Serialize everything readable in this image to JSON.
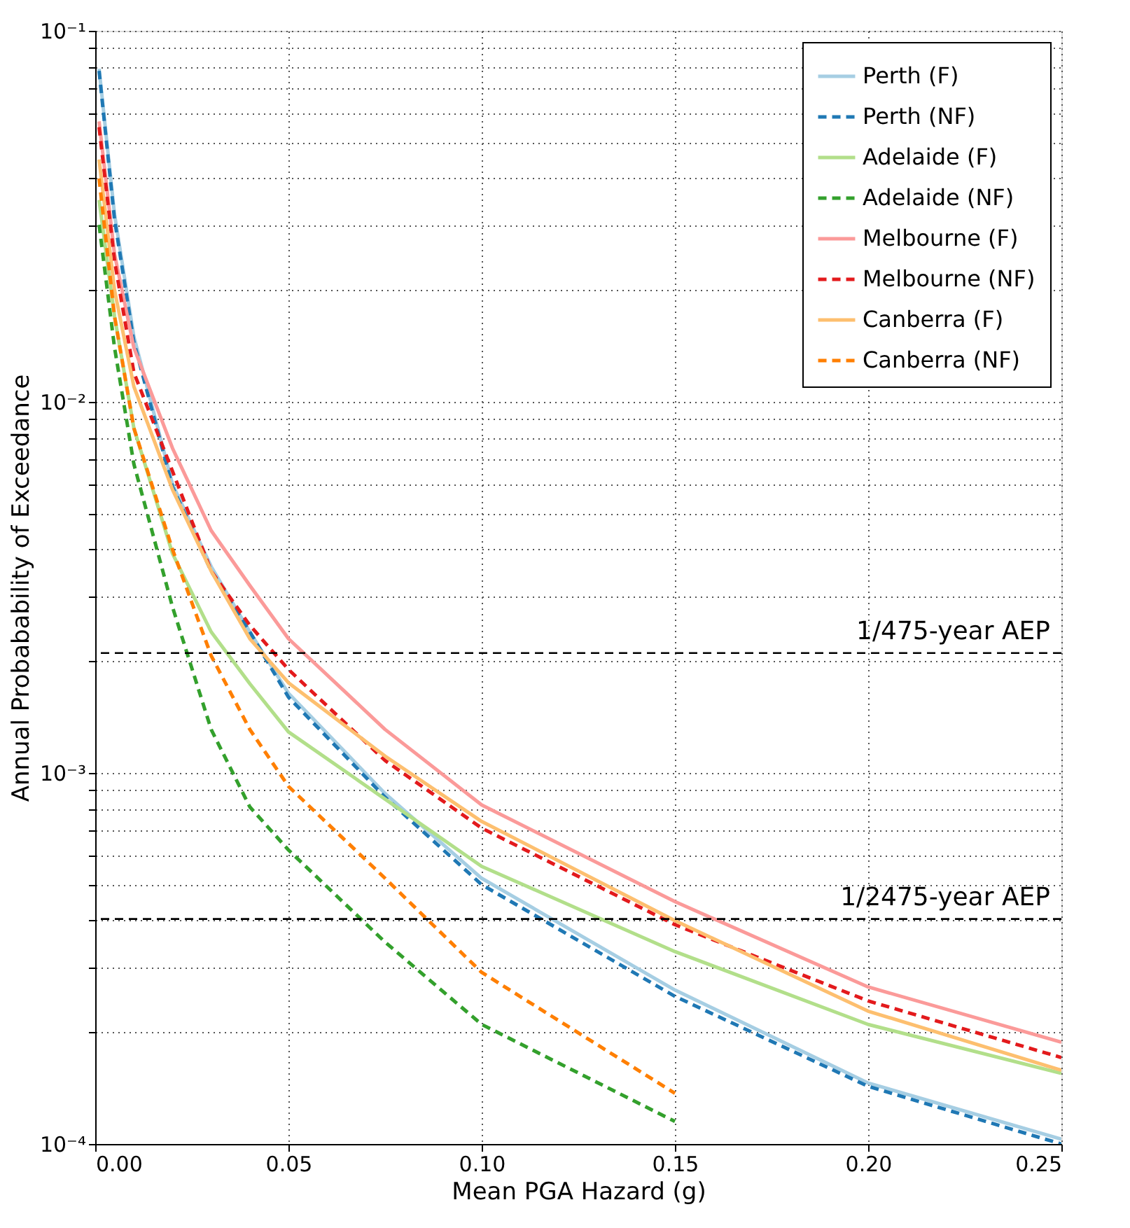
{
  "chart_data": {
    "type": "line",
    "xlabel": "Mean PGA Hazard (g)",
    "ylabel": "Annual Probabability of Exceedance",
    "log": "y",
    "grid": true,
    "legend": "top right",
    "xlim": [
      0,
      0.25
    ],
    "ylim": [
      0.0001,
      0.1
    ],
    "xticks": [
      {
        "value": 0,
        "label": "0.00"
      },
      {
        "value": 0.05,
        "label": "0.05"
      },
      {
        "value": 0.1,
        "label": "0.10"
      },
      {
        "value": 0.15,
        "label": "0.15"
      },
      {
        "value": 0.2,
        "label": "0.20"
      },
      {
        "value": 0.25,
        "label": "0.25"
      }
    ],
    "yticks": [
      {
        "value": 0.0001,
        "label": "10⁻⁴"
      },
      {
        "value": 0.0002,
        "label": null
      },
      {
        "value": 0.0003,
        "label": null
      },
      {
        "value": 0.0004,
        "label": null
      },
      {
        "value": 0.0005,
        "label": null
      },
      {
        "value": 0.0006,
        "label": null
      },
      {
        "value": 0.0007,
        "label": null
      },
      {
        "value": 0.0008,
        "label": null
      },
      {
        "value": 0.0009,
        "label": null
      },
      {
        "value": 0.001,
        "label": "10⁻³"
      },
      {
        "value": 0.002,
        "label": null
      },
      {
        "value": 0.003,
        "label": null
      },
      {
        "value": 0.004,
        "label": null
      },
      {
        "value": 0.005,
        "label": null
      },
      {
        "value": 0.006,
        "label": null
      },
      {
        "value": 0.007,
        "label": null
      },
      {
        "value": 0.008,
        "label": null
      },
      {
        "value": 0.009,
        "label": null
      },
      {
        "value": 0.01,
        "label": "10⁻²"
      },
      {
        "value": 0.02,
        "label": null
      },
      {
        "value": 0.03,
        "label": null
      },
      {
        "value": 0.04,
        "label": null
      },
      {
        "value": 0.05,
        "label": null
      },
      {
        "value": 0.06,
        "label": null
      },
      {
        "value": 0.07,
        "label": null
      },
      {
        "value": 0.08,
        "label": null
      },
      {
        "value": 0.09,
        "label": null
      },
      {
        "value": 0.1,
        "label": "10⁻¹"
      }
    ],
    "x": [
      0.001,
      0.005,
      0.01,
      0.02,
      0.03,
      0.04,
      0.05,
      0.075,
      0.1,
      0.15,
      0.2,
      0.25
    ],
    "series": [
      {
        "name": "Perth (F)",
        "color": "#a6cee3",
        "line_style": "solid",
        "values": [
          0.079,
          0.032,
          0.015,
          0.006,
          0.0036,
          0.0024,
          0.00164,
          0.00088,
          0.00052,
          0.00026,
          0.000146,
          0.000103
        ]
      },
      {
        "name": "Perth (NF)",
        "color": "#1f78b4",
        "line_style": "dashed",
        "values": [
          0.078,
          0.031,
          0.0145,
          0.0059,
          0.0035,
          0.0024,
          0.0016,
          0.00086,
          0.0005,
          0.00025,
          0.000143,
          0.0001
        ]
      },
      {
        "name": "Adelaide (F)",
        "color": "#b2df8a",
        "line_style": "solid",
        "values": [
          0.035,
          0.017,
          0.0085,
          0.0039,
          0.0024,
          0.00174,
          0.00129,
          0.00085,
          0.00056,
          0.00033,
          0.00021,
          0.000155
        ]
      },
      {
        "name": "Adelaide (NF)",
        "color": "#33a02c",
        "line_style": "dashed",
        "values": [
          0.03,
          0.014,
          0.0068,
          0.0028,
          0.00131,
          0.00081,
          0.00062,
          0.00035,
          0.00021,
          0.000115,
          null,
          null
        ]
      },
      {
        "name": "Melbourne (F)",
        "color": "#fb9a99",
        "line_style": "solid",
        "values": [
          0.057,
          0.025,
          0.014,
          0.0075,
          0.0045,
          0.0032,
          0.0023,
          0.00131,
          0.00082,
          0.00045,
          0.000265,
          0.000188
        ]
      },
      {
        "name": "Melbourne (NF)",
        "color": "#e31a1c",
        "line_style": "dashed",
        "values": [
          0.055,
          0.024,
          0.012,
          0.0065,
          0.0035,
          0.0025,
          0.0019,
          0.00108,
          0.00071,
          0.00039,
          0.000243,
          0.000171
        ]
      },
      {
        "name": "Canberra (F)",
        "color": "#fdbf6f",
        "line_style": "solid",
        "values": [
          0.045,
          0.02,
          0.011,
          0.0058,
          0.0035,
          0.0023,
          0.00175,
          0.00111,
          0.00074,
          0.0004,
          0.000228,
          0.000158
        ]
      },
      {
        "name": "Canberra (NF)",
        "color": "#ff7f00",
        "line_style": "dashed",
        "values": [
          0.04,
          0.017,
          0.0085,
          0.004,
          0.00207,
          0.00131,
          0.00092,
          0.00052,
          0.00029,
          0.000137,
          null,
          null
        ]
      }
    ],
    "ref_lines": [
      {
        "axis": "y",
        "value": 0.002105,
        "label": "1/475-year AEP",
        "color": "#000000",
        "line_style": "dashed"
      },
      {
        "axis": "y",
        "value": 0.000404,
        "label": "1/2475-year AEP",
        "color": "#000000",
        "line_style": "dashed"
      }
    ]
  }
}
